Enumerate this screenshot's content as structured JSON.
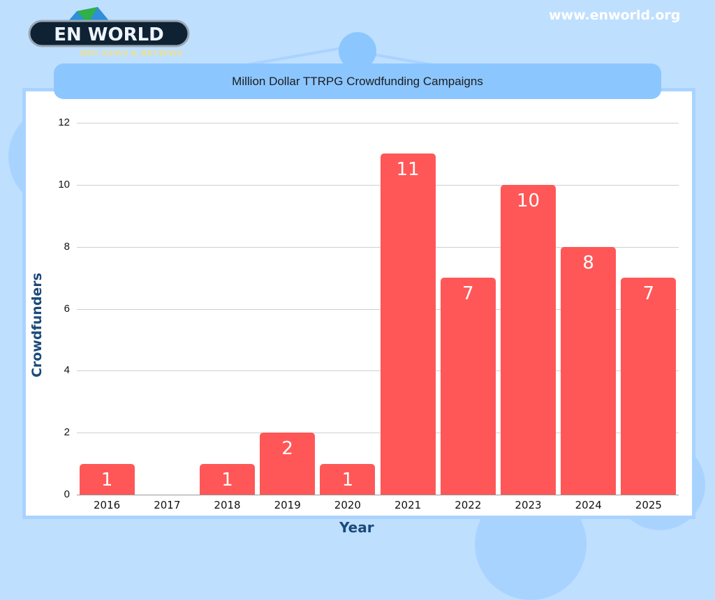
{
  "header": {
    "logo_text": "EN WORLD",
    "logo_subtitle": "RPG NEWS & REVIEWS",
    "site_url": "www.enworld.org"
  },
  "colors": {
    "background": "#bfdfff",
    "title_bar": "#8cc6ff",
    "bar": "#ff5757",
    "axis_title": "#1b4a7a"
  },
  "chart_data": {
    "type": "bar",
    "title": "Million Dollar TTRPG Crowdfunding Campaigns",
    "xlabel": "Year",
    "ylabel": "Crowdfunders",
    "categories": [
      "2016",
      "2017",
      "2018",
      "2019",
      "2020",
      "2021",
      "2022",
      "2023",
      "2024",
      "2025"
    ],
    "values": [
      1,
      0,
      1,
      2,
      1,
      11,
      7,
      10,
      8,
      7
    ],
    "value_labels": [
      "1",
      "",
      "1",
      "2",
      "1",
      "11",
      "7",
      "10",
      "8",
      "7"
    ],
    "yticks": [
      "0",
      "2",
      "4",
      "6",
      "8",
      "10",
      "12"
    ],
    "ylim": [
      0,
      12
    ],
    "grid": true,
    "legend": null
  }
}
